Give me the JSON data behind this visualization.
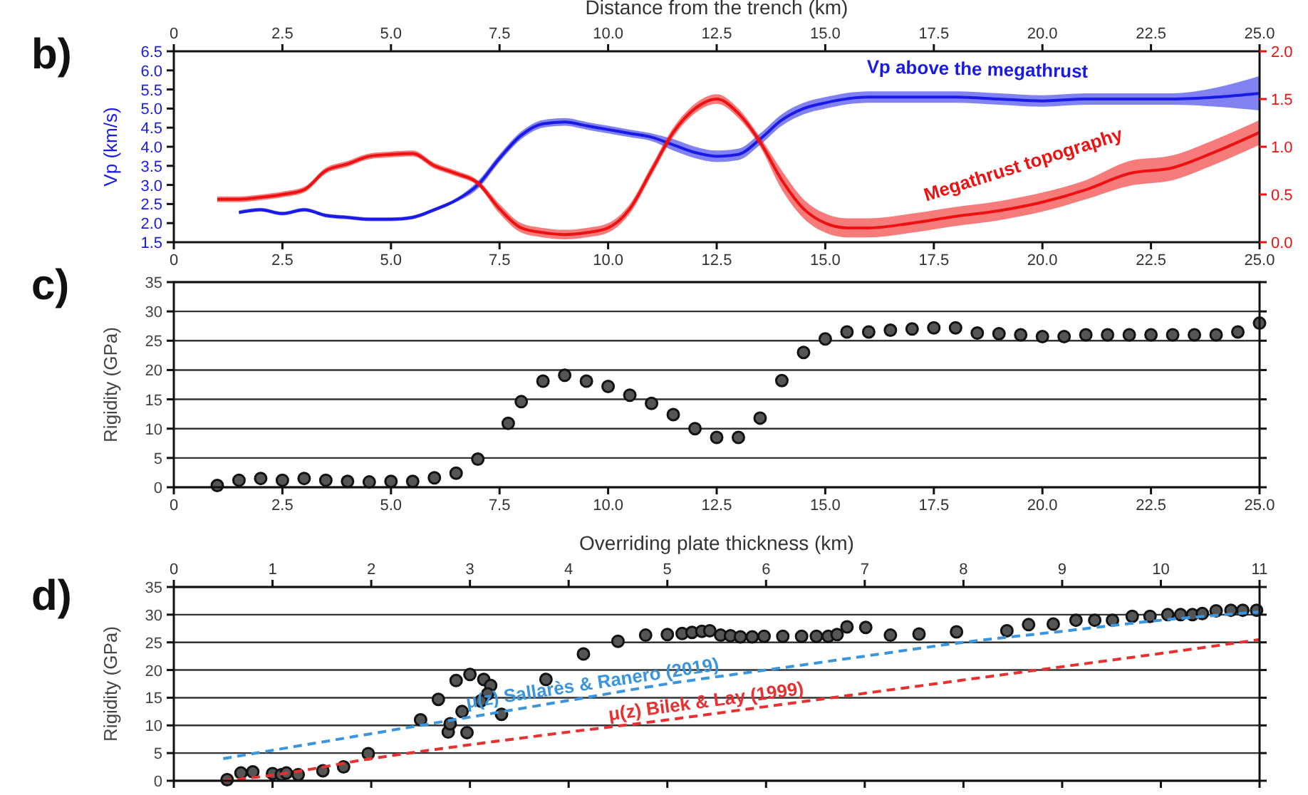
{
  "chart_data": [
    {
      "type": "line",
      "title": "b)",
      "x2label": "Distance from the trench (km)",
      "ylabel": "Vp (km/s)",
      "xlim": [
        0,
        25
      ],
      "xticks": [
        0,
        2.5,
        {
          "value": 5,
          "label": "5.0"
        },
        7.5,
        {
          "value": 10,
          "label": "10.0"
        },
        12.5,
        {
          "value": 15,
          "label": "15.0"
        },
        17.5,
        {
          "value": 20,
          "label": "20.0"
        },
        22.5,
        {
          "value": 25,
          "label": "25.0"
        }
      ],
      "x2lim": [
        0,
        25
      ],
      "x2ticks": [
        0,
        2.5,
        {
          "value": 5,
          "label": "5.0"
        },
        7.5,
        {
          "value": 10,
          "label": "10.0"
        },
        12.5,
        {
          "value": 15,
          "label": "15.0"
        },
        17.5,
        {
          "value": 20,
          "label": "20.0"
        },
        22.5,
        {
          "value": 25,
          "label": "25.0"
        }
      ],
      "ylim": [
        1.5,
        6.5
      ],
      "yticks": [
        1.5,
        {
          "value": 2,
          "label": "2.0"
        },
        2.5,
        {
          "value": 3,
          "label": "3.0"
        },
        3.5,
        {
          "value": 4,
          "label": "4.0"
        },
        4.5,
        {
          "value": 5,
          "label": "5.0"
        },
        5.5,
        {
          "value": 6,
          "label": "6.0"
        },
        6.5
      ],
      "y2lim": [
        0,
        2
      ],
      "y2ticks": [
        {
          "value": 0,
          "label": "0.0"
        },
        0.5,
        {
          "value": 1,
          "label": "1.0"
        },
        1.5,
        {
          "value": 2,
          "label": "2.0"
        }
      ],
      "series": [
        {
          "name": "Vp above the megathrust",
          "color": "#1a1ae6",
          "x": [
            1.5,
            2,
            2.5,
            3,
            3.5,
            4,
            4.5,
            5,
            5.5,
            6,
            6.5,
            7,
            7.5,
            8,
            8.5,
            9,
            9.5,
            10,
            10.5,
            11,
            11.5,
            12,
            12.5,
            13,
            13.5,
            14,
            14.5,
            15,
            16,
            17,
            18,
            19,
            20,
            21,
            22,
            23,
            24,
            25
          ],
          "values": [
            2.28,
            2.35,
            2.25,
            2.35,
            2.2,
            2.15,
            2.1,
            2.1,
            2.15,
            2.35,
            2.6,
            3.0,
            3.7,
            4.3,
            4.6,
            4.65,
            4.55,
            4.45,
            4.35,
            4.25,
            4.05,
            3.85,
            3.75,
            3.8,
            4.2,
            4.7,
            5.0,
            5.15,
            5.3,
            5.3,
            5.3,
            5.25,
            5.2,
            5.25,
            5.25,
            5.25,
            5.3,
            5.4
          ],
          "lower": [
            2.23,
            2.3,
            2.2,
            2.3,
            2.15,
            2.1,
            2.05,
            2.05,
            2.1,
            2.3,
            2.55,
            2.9,
            3.6,
            4.2,
            4.5,
            4.55,
            4.45,
            4.35,
            4.25,
            4.15,
            3.9,
            3.7,
            3.6,
            3.65,
            4.05,
            4.55,
            4.85,
            5.0,
            5.15,
            5.15,
            5.15,
            5.1,
            5.05,
            5.1,
            5.1,
            5.1,
            5.05,
            4.95
          ],
          "upper": [
            2.33,
            2.4,
            2.3,
            2.4,
            2.25,
            2.2,
            2.15,
            2.15,
            2.2,
            2.4,
            2.65,
            3.1,
            3.8,
            4.4,
            4.7,
            4.75,
            4.65,
            4.55,
            4.45,
            4.35,
            4.2,
            4.0,
            3.9,
            3.95,
            4.35,
            4.85,
            5.15,
            5.3,
            5.45,
            5.45,
            5.45,
            5.4,
            5.35,
            5.4,
            5.4,
            5.4,
            5.55,
            5.85
          ]
        },
        {
          "name": "Megathrust topography",
          "color": "#ee1111",
          "axis": "y2",
          "x": [
            1,
            1.5,
            2,
            2.5,
            3,
            3.5,
            4,
            4.5,
            5,
            5.5,
            6,
            6.5,
            7,
            7.5,
            8,
            8.5,
            9,
            9.5,
            10,
            10.5,
            11,
            11.5,
            12,
            12.5,
            13,
            13.5,
            14,
            14.5,
            15,
            15.5,
            16,
            17,
            18,
            19,
            20,
            21,
            22,
            23,
            24,
            25
          ],
          "values": [
            0.45,
            0.45,
            0.47,
            0.5,
            0.55,
            0.75,
            0.82,
            0.9,
            0.92,
            0.93,
            0.8,
            0.72,
            0.62,
            0.35,
            0.15,
            0.1,
            0.08,
            0.1,
            0.15,
            0.35,
            0.75,
            1.15,
            1.4,
            1.5,
            1.35,
            1.05,
            0.65,
            0.35,
            0.2,
            0.15,
            0.15,
            0.2,
            0.27,
            0.33,
            0.42,
            0.55,
            0.72,
            0.78,
            0.95,
            1.15
          ],
          "lower": [
            0.42,
            0.42,
            0.44,
            0.47,
            0.52,
            0.72,
            0.79,
            0.87,
            0.89,
            0.9,
            0.77,
            0.69,
            0.59,
            0.3,
            0.1,
            0.05,
            0.03,
            0.05,
            0.1,
            0.3,
            0.7,
            1.1,
            1.35,
            1.45,
            1.3,
            1.0,
            0.55,
            0.25,
            0.1,
            0.05,
            0.05,
            0.1,
            0.17,
            0.23,
            0.32,
            0.45,
            0.59,
            0.65,
            0.82,
            1.02
          ],
          "upper": [
            0.48,
            0.48,
            0.5,
            0.53,
            0.58,
            0.78,
            0.85,
            0.93,
            0.95,
            0.96,
            0.83,
            0.75,
            0.65,
            0.4,
            0.2,
            0.15,
            0.13,
            0.15,
            0.2,
            0.4,
            0.8,
            1.2,
            1.45,
            1.55,
            1.4,
            1.1,
            0.75,
            0.45,
            0.3,
            0.25,
            0.25,
            0.3,
            0.37,
            0.43,
            0.52,
            0.65,
            0.85,
            0.91,
            1.08,
            1.28
          ]
        }
      ]
    },
    {
      "type": "scatter",
      "title": "c)",
      "ylabel": "Rigidity (GPa)",
      "marker": "circle",
      "grid": "y",
      "xlim": [
        0,
        25
      ],
      "xticks": [
        0,
        2.5,
        {
          "value": 5,
          "label": "5.0"
        },
        7.5,
        {
          "value": 10,
          "label": "10.0"
        },
        12.5,
        {
          "value": 15,
          "label": "15.0"
        },
        17.5,
        {
          "value": 20,
          "label": "20.0"
        },
        22.5,
        {
          "value": 25,
          "label": "25.0"
        }
      ],
      "ylim": [
        0,
        35
      ],
      "yticks": [
        0,
        5,
        10,
        15,
        20,
        25,
        30,
        35
      ],
      "series": [
        {
          "color": "#555555",
          "x": [
            1,
            1.5,
            2,
            2.5,
            3,
            3.5,
            4,
            4.5,
            5,
            5.5,
            6,
            6.5,
            7,
            7.7,
            8,
            8.5,
            9,
            9.5,
            10,
            10.5,
            11,
            11.5,
            12,
            12.5,
            13,
            13.5,
            14,
            14.5,
            15,
            15.5,
            16,
            16.5,
            17,
            17.5,
            18,
            18.5,
            19,
            19.5,
            20,
            20.5,
            21,
            21.5,
            22,
            22.5,
            23,
            23.5,
            24,
            24.5,
            25
          ],
          "values": [
            0.3,
            1.2,
            1.5,
            1.2,
            1.5,
            1.2,
            1.0,
            0.9,
            1.0,
            1.0,
            1.6,
            2.4,
            4.8,
            10.9,
            14.6,
            18.1,
            19.1,
            18.1,
            17.2,
            15.7,
            14.3,
            12.4,
            10.0,
            8.5,
            8.5,
            11.8,
            18.2,
            23.0,
            25.3,
            26.5,
            26.5,
            26.8,
            27.0,
            27.2,
            27.2,
            26.3,
            26.2,
            26.0,
            25.7,
            25.7,
            26.0,
            26.0,
            26.0,
            26.0,
            26.0,
            26.0,
            26.0,
            26.5,
            28.0
          ]
        }
      ]
    },
    {
      "type": "scatter",
      "title": "d)",
      "xlabel": "Overriding plate thickness (km)",
      "ylabel": "Rigidity (GPa)",
      "grid": "y",
      "xlim": [
        0,
        11
      ],
      "xticks": [
        0,
        1,
        2,
        3,
        4,
        5,
        6,
        7,
        8,
        9,
        10,
        11
      ],
      "ylim": [
        0,
        35
      ],
      "yticks": [
        0,
        5,
        10,
        15,
        20,
        25,
        30,
        35
      ],
      "series": [
        {
          "color": "#555555",
          "marker": "circle",
          "x": [
            0.54,
            0.68,
            0.8,
            1.0,
            1.09,
            1.14,
            1.26,
            1.51,
            1.72,
            1.97,
            2.5,
            2.68,
            2.78,
            2.8,
            2.86,
            2.92,
            2.97,
            3.0,
            3.14,
            3.21,
            3.18,
            3.11,
            3.32,
            3.77,
            4.15,
            4.5,
            4.78,
            5.0,
            5.15,
            5.25,
            5.35,
            5.43,
            5.54,
            5.64,
            5.74,
            5.86,
            5.98,
            6.17,
            6.36,
            6.51,
            6.63,
            6.72,
            6.82,
            7.01,
            7.26,
            7.55,
            7.93,
            8.44,
            8.66,
            8.91,
            9.14,
            9.33,
            9.51,
            9.71,
            9.89,
            10.07,
            10.2,
            10.32,
            10.42,
            10.56,
            10.71,
            10.83,
            10.97
          ],
          "values": [
            0.2,
            1.4,
            1.6,
            1.3,
            1.1,
            1.4,
            1.1,
            1.8,
            2.5,
            4.9,
            11.0,
            14.7,
            8.8,
            10.3,
            18.1,
            12.5,
            8.7,
            19.2,
            18.3,
            17.2,
            15.7,
            14.4,
            12.0,
            18.3,
            22.9,
            25.2,
            26.3,
            26.4,
            26.6,
            26.8,
            27.0,
            27.1,
            26.3,
            26.2,
            26.0,
            26.0,
            26.1,
            26.1,
            26.1,
            26.1,
            26.1,
            26.4,
            27.8,
            27.7,
            26.3,
            26.5,
            26.9,
            27.1,
            28.2,
            28.3,
            29.0,
            29.0,
            29.0,
            29.7,
            29.7,
            30.0,
            30.0,
            30.0,
            30.2,
            30.7,
            30.8,
            30.8,
            30.8
          ]
        },
        {
          "type": "line",
          "name": "μ(z) Sallarès & Ranero (2019)",
          "color": "#3a95dd",
          "line_style": "dashed",
          "x": [
            0.5,
            1,
            2,
            3,
            4,
            5,
            6,
            7,
            8,
            9,
            10,
            11
          ],
          "values": [
            4,
            5.5,
            8.5,
            11.5,
            14.5,
            17.5,
            20,
            22.5,
            25,
            27,
            29,
            30.5
          ]
        },
        {
          "type": "line",
          "name": "μ(z) Bilek & Lay (1999)",
          "color": "#e83030",
          "line_style": "dashed",
          "x": [
            0.5,
            1,
            2,
            3,
            4,
            5,
            6,
            7,
            8,
            9,
            10,
            11
          ],
          "values": [
            0,
            1,
            4,
            6.5,
            8.8,
            11,
            13.4,
            15.8,
            18.2,
            20.6,
            23,
            25.5
          ]
        }
      ]
    }
  ]
}
